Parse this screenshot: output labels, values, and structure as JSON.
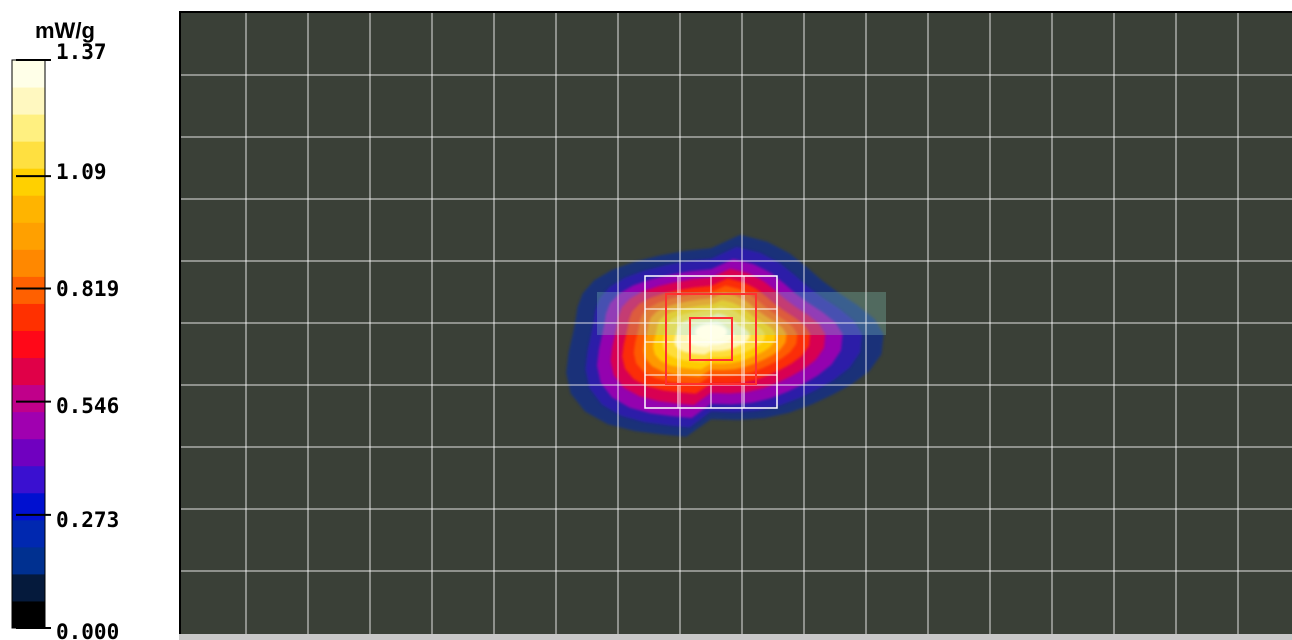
{
  "chart_data": {
    "type": "heatmap",
    "title": "",
    "xlabel": "",
    "ylabel": "",
    "grid": true,
    "colorbar": {
      "unit": "mW/g",
      "min": 0.0,
      "max": 1.37,
      "tick_labels": [
        "1.37",
        "1.09",
        "0.819",
        "0.546",
        "0.273",
        "0.000"
      ],
      "tick_values": [
        1.37,
        1.09,
        0.819,
        0.546,
        0.273,
        0.0
      ],
      "colors": [
        "#000000",
        "#051a3c",
        "#003090",
        "#0028b0",
        "#0010d0",
        "#3a10d0",
        "#7000c0",
        "#a000b0",
        "#c0008a",
        "#e00048",
        "#ff0818",
        "#ff3000",
        "#ff6000",
        "#ff8800",
        "#ffa000",
        "#ffb400",
        "#ffd000",
        "#ffe040",
        "#fff080",
        "#fff8c0",
        "#ffffe8"
      ]
    },
    "background_color": "#3a4037",
    "grid_color": "#ffffff",
    "hotspot": {
      "peak_value": 1.37
    }
  }
}
